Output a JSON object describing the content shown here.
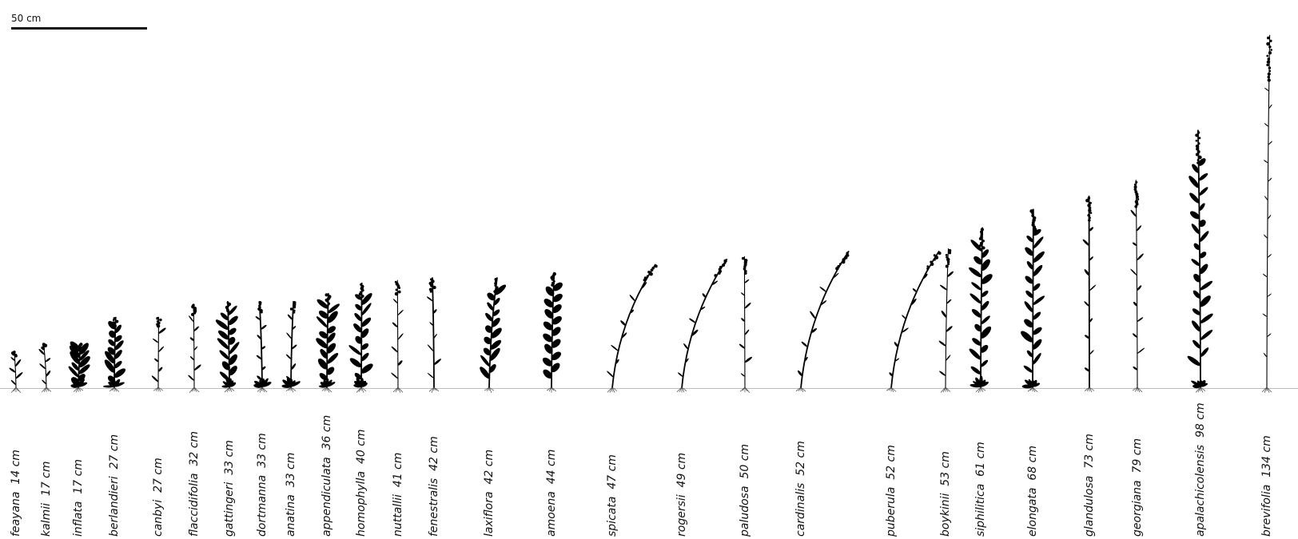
{
  "scale": {
    "label": "50 cm",
    "cm": 50
  },
  "specimens": [
    {
      "species": "feayana",
      "height_label": "14 cm",
      "height_cm": 14,
      "habit": "slender"
    },
    {
      "species": "kalmii",
      "height_label": "17 cm",
      "height_cm": 17,
      "habit": "slender"
    },
    {
      "species": "inflata",
      "height_label": "17 cm",
      "height_cm": 17,
      "habit": "leafy"
    },
    {
      "species": "berlandieri",
      "height_label": "27 cm",
      "height_cm": 27,
      "habit": "leafy"
    },
    {
      "species": "canbyi",
      "height_label": "27 cm",
      "height_cm": 27,
      "habit": "slender"
    },
    {
      "species": "flaccidifolia",
      "height_label": "32 cm",
      "height_cm": 32,
      "habit": "slender"
    },
    {
      "species": "gattingeri",
      "height_label": "33 cm",
      "height_cm": 33,
      "habit": "dense"
    },
    {
      "species": "dortmanna",
      "height_label": "33 cm",
      "height_cm": 33,
      "habit": "rosette"
    },
    {
      "species": "anatina",
      "height_label": "33 cm",
      "height_cm": 33,
      "habit": "rosette"
    },
    {
      "species": "appendiculata",
      "height_label": "36 cm",
      "height_cm": 36,
      "habit": "dense"
    },
    {
      "species": "homophylla",
      "height_label": "40 cm",
      "height_cm": 40,
      "habit": "dense"
    },
    {
      "species": "nuttallii",
      "height_label": "41 cm",
      "height_cm": 41,
      "habit": "slender"
    },
    {
      "species": "fenestralis",
      "height_label": "42 cm",
      "height_cm": 42,
      "habit": "spike"
    },
    {
      "species": "laxiflora",
      "height_label": "42 cm",
      "height_cm": 42,
      "habit": "bushy"
    },
    {
      "species": "amoena",
      "height_label": "44 cm",
      "height_cm": 44,
      "habit": "broadleaf"
    },
    {
      "species": "spicata",
      "height_label": "47 cm",
      "height_cm": 47,
      "habit": "arching"
    },
    {
      "species": "rogersii",
      "height_label": "49 cm",
      "height_cm": 49,
      "habit": "arching"
    },
    {
      "species": "paludosa",
      "height_label": "50 cm",
      "height_cm": 50,
      "habit": "slender"
    },
    {
      "species": "cardinalis",
      "height_label": "52 cm",
      "height_cm": 52,
      "habit": "leaning"
    },
    {
      "species": "puberula",
      "height_label": "52 cm",
      "height_cm": 52,
      "habit": "arching"
    },
    {
      "species": "boykinii",
      "height_label": "53 cm",
      "height_cm": 53,
      "habit": "slender"
    },
    {
      "species": "siphilitica",
      "height_label": "61 cm",
      "height_cm": 61,
      "habit": "leafy"
    },
    {
      "species": "elongata",
      "height_label": "68 cm",
      "height_cm": 68,
      "habit": "leafy"
    },
    {
      "species": "glandulosa",
      "height_label": "73 cm",
      "height_cm": 73,
      "habit": "branched"
    },
    {
      "species": "georgiana",
      "height_label": "79 cm",
      "height_cm": 79,
      "habit": "slender"
    },
    {
      "species": "apalachicolensis",
      "height_label": "98 cm",
      "height_cm": 98,
      "habit": "leafy"
    },
    {
      "species": "brevifolia",
      "height_label": "134 cm",
      "height_cm": 134,
      "habit": "wiry"
    }
  ]
}
